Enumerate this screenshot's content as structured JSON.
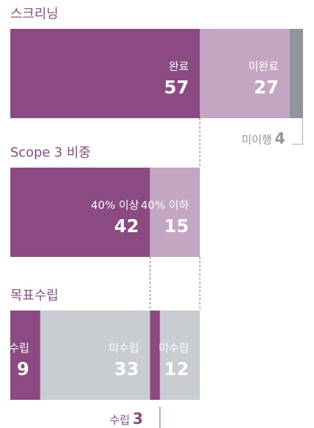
{
  "chart_data": [
    {
      "type": "stacked-bar",
      "title": "스크리닝",
      "series": [
        {
          "name": "완료",
          "color": "#8b4a82",
          "values": [
            57
          ]
        },
        {
          "name": "미완료",
          "color": "#c4a6c2",
          "values": [
            27
          ]
        },
        {
          "name": "미이행",
          "color": "#8f9599",
          "values": [
            4
          ]
        }
      ]
    },
    {
      "type": "stacked-bar",
      "title": "Scope 3 비중",
      "series": [
        {
          "name": "40% 이상",
          "color": "#8b4a82",
          "values": [
            42
          ]
        },
        {
          "name": "40% 이하",
          "color": "#c4a6c2",
          "values": [
            15
          ]
        }
      ]
    },
    {
      "type": "stacked-bar",
      "title": "목표수립",
      "series": [
        {
          "name": "수립",
          "color": "#8b4a82",
          "values": [
            9
          ]
        },
        {
          "name": "미수립",
          "color": "#c9ccd0",
          "values": [
            33
          ]
        },
        {
          "name": "수립",
          "color": "#8b4a82",
          "values": [
            3
          ]
        },
        {
          "name": "미수립",
          "color": "#c9ccd0",
          "values": [
            12
          ]
        }
      ]
    }
  ]
}
